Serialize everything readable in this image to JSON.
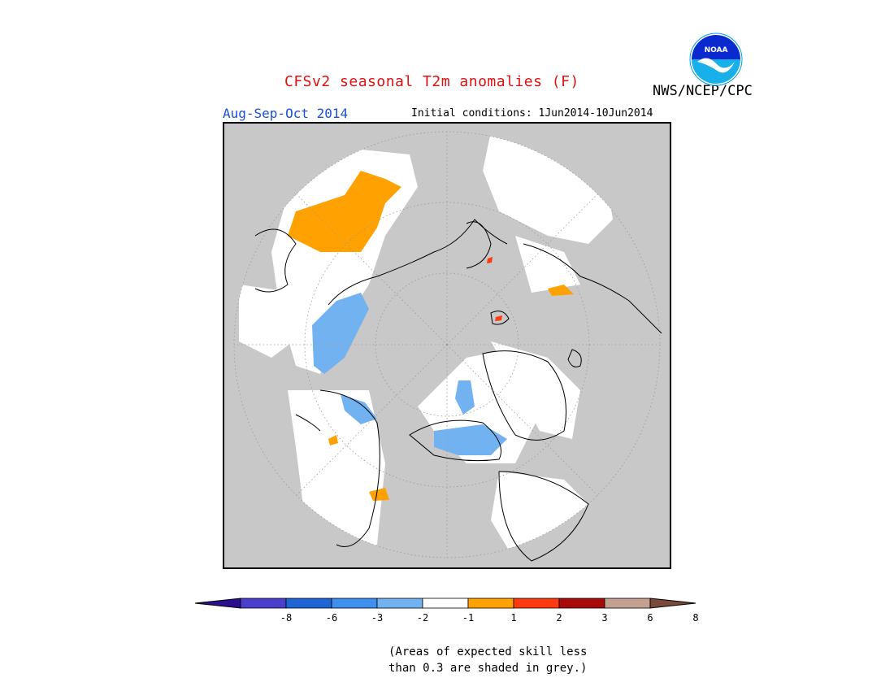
{
  "header": {
    "title": "CFSv2 seasonal T2m anomalies (F)",
    "agency": "NWS/NCEP/CPC",
    "season": "Aug-Sep-Oct 2014",
    "initial_conditions": "Initial conditions: 1Jun2014-10Jun2014",
    "logo_text": "NOAA"
  },
  "map": {
    "projection": "polar stereographic (north pole)",
    "background_grey": "#c8c8c8",
    "neutral_white": "#ffffff"
  },
  "legend": {
    "ticks": [
      "-8",
      "-6",
      "-3",
      "-2",
      "-1",
      "1",
      "2",
      "3",
      "6",
      "8"
    ],
    "colors": [
      "#2a0f8e",
      "#4a3fcc",
      "#1f64d4",
      "#3f8ff0",
      "#73b2f0",
      "#ffffff",
      "#ffa100",
      "#ff3a10",
      "#a80a0a",
      "#c4a090",
      "#7a4a3a"
    ]
  },
  "note": {
    "line1": "(Areas of expected skill less",
    "line2": "than 0.3 are shaded in grey.)"
  }
}
